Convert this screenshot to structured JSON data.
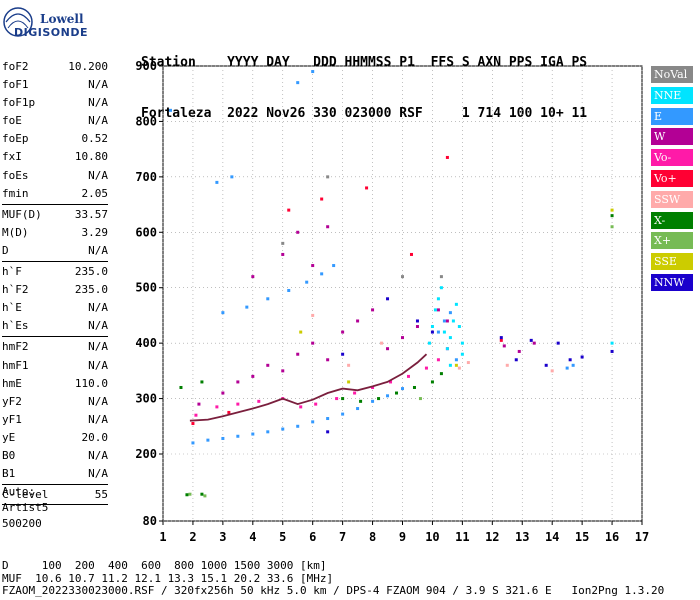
{
  "logo": {
    "line1": "Lowell",
    "line2": "DIGISONDE"
  },
  "header": {
    "line1": "Station    YYYY DAY   DDD HHMMSS P1  FFS S AXN PPS IGA PS",
    "line2": "Fortaleza  2022 Nov26 330 023000 RSF     1 714 100 10+ 11"
  },
  "params": [
    {
      "group": [
        {
          "k": "foF2",
          "v": "10.200"
        },
        {
          "k": "foF1",
          "v": "N/A"
        },
        {
          "k": "foF1p",
          "v": "N/A"
        },
        {
          "k": "foE",
          "v": "N/A"
        },
        {
          "k": "foEp",
          "v": "0.52"
        },
        {
          "k": "fxI",
          "v": "10.80"
        },
        {
          "k": "foEs",
          "v": "N/A"
        },
        {
          "k": "fmin",
          "v": "2.05"
        }
      ]
    },
    {
      "group": [
        {
          "k": "MUF(D)",
          "v": "33.57"
        },
        {
          "k": "M(D)",
          "v": "3.29"
        },
        {
          "k": "D",
          "v": "N/A"
        }
      ]
    },
    {
      "group": [
        {
          "k": "h`F",
          "v": "235.0"
        },
        {
          "k": "h`F2",
          "v": "235.0"
        },
        {
          "k": "h`E",
          "v": "N/A"
        },
        {
          "k": "h`Es",
          "v": "N/A"
        }
      ]
    },
    {
      "group": [
        {
          "k": "hmF2",
          "v": "N/A"
        },
        {
          "k": "hmF1",
          "v": "N/A"
        },
        {
          "k": "hmE",
          "v": "110.0"
        },
        {
          "k": "yF2",
          "v": "N/A"
        },
        {
          "k": "yF1",
          "v": "N/A"
        },
        {
          "k": "yE",
          "v": "20.0"
        },
        {
          "k": "B0",
          "v": "N/A"
        },
        {
          "k": "B1",
          "v": "N/A"
        }
      ]
    },
    {
      "group": [
        {
          "k": "C-level",
          "v": "55"
        }
      ]
    }
  ],
  "auto": {
    "line1": "Auto:",
    "line2": "Artist5",
    "line3": "500200"
  },
  "legend": [
    {
      "label": "NoVal",
      "color": "#888888"
    },
    {
      "label": "NNE",
      "color": "#00e4ff"
    },
    {
      "label": "E",
      "color": "#3399ff"
    },
    {
      "label": "W",
      "color": "#b30095"
    },
    {
      "label": "Vo-",
      "color": "#ff1aa8"
    },
    {
      "label": "Vo+",
      "color": "#ff0033"
    },
    {
      "label": "SSW",
      "color": "#ffaaaa"
    },
    {
      "label": "X-",
      "color": "#007f00"
    },
    {
      "label": "X+",
      "color": "#77bb55"
    },
    {
      "label": "SSE",
      "color": "#cccc00"
    },
    {
      "label": "NNW",
      "color": "#1a00cc"
    }
  ],
  "footer": {
    "line1": "D     100  200  400  600  800 1000 1500 3000 [km]",
    "line2": "MUF  10.6 10.7 11.2 12.1 13.3 15.1 20.2 33.6 [MHz]",
    "line3": "FZAOM_2022330023000.RSF / 320fx256h 50 kHz 5.0 km / DPS-4 FZAOM 904 / 3.9 S 321.6 E   Ion2Png 1.3.20"
  },
  "chart_data": {
    "type": "scatter",
    "xlim": [
      1,
      17
    ],
    "ylim": [
      80,
      900
    ],
    "xticks": [
      1,
      2,
      3,
      4,
      5,
      6,
      7,
      8,
      9,
      10,
      11,
      12,
      13,
      14,
      15,
      16,
      17
    ],
    "yticks": [
      80,
      200,
      300,
      400,
      500,
      600,
      700,
      800,
      900
    ],
    "grid": "dotted",
    "legend_position": "right",
    "series": [
      {
        "name": "E",
        "color": "#3399ff",
        "points": [
          [
            2.0,
            220
          ],
          [
            3.0,
            228
          ],
          [
            4.0,
            236
          ],
          [
            5.0,
            245
          ],
          [
            6.0,
            258
          ],
          [
            7.0,
            272
          ],
          [
            7.5,
            282
          ],
          [
            8.0,
            295
          ],
          [
            2.5,
            225
          ],
          [
            3.5,
            232
          ],
          [
            4.5,
            240
          ],
          [
            5.5,
            250
          ],
          [
            6.5,
            264
          ],
          [
            8.5,
            305
          ],
          [
            9.0,
            318
          ],
          [
            3.0,
            455
          ],
          [
            3.8,
            465
          ],
          [
            4.5,
            480
          ],
          [
            5.2,
            495
          ],
          [
            5.8,
            510
          ],
          [
            6.3,
            525
          ],
          [
            6.7,
            540
          ],
          [
            5.5,
            870
          ],
          [
            6.0,
            890
          ],
          [
            2.8,
            690
          ],
          [
            3.3,
            700
          ],
          [
            1.25,
            820
          ],
          [
            10.2,
            420
          ],
          [
            10.4,
            440
          ],
          [
            10.6,
            455
          ],
          [
            10.8,
            370
          ],
          [
            14.5,
            355
          ],
          [
            14.7,
            360
          ]
        ]
      },
      {
        "name": "W",
        "color": "#b30095",
        "points": [
          [
            2.2,
            290
          ],
          [
            3.0,
            310
          ],
          [
            3.5,
            330
          ],
          [
            4.0,
            340
          ],
          [
            4.5,
            360
          ],
          [
            5.0,
            350
          ],
          [
            5.5,
            380
          ],
          [
            6.0,
            400
          ],
          [
            6.5,
            370
          ],
          [
            7.0,
            420
          ],
          [
            7.5,
            440
          ],
          [
            8.0,
            460
          ],
          [
            8.5,
            390
          ],
          [
            9.0,
            410
          ],
          [
            9.5,
            430
          ],
          [
            5.0,
            560
          ],
          [
            5.5,
            600
          ],
          [
            6.0,
            540
          ],
          [
            6.5,
            610
          ],
          [
            4.0,
            520
          ],
          [
            10.2,
            460
          ],
          [
            10.5,
            440
          ],
          [
            12.4,
            395
          ],
          [
            12.9,
            385
          ],
          [
            13.4,
            400
          ]
        ]
      },
      {
        "name": "Vo-",
        "color": "#ff1aa8",
        "points": [
          [
            2.1,
            270
          ],
          [
            2.8,
            285
          ],
          [
            3.5,
            290
          ],
          [
            4.2,
            295
          ],
          [
            5.0,
            300
          ],
          [
            5.6,
            285
          ],
          [
            6.1,
            290
          ],
          [
            6.8,
            300
          ],
          [
            7.4,
            310
          ],
          [
            8.0,
            320
          ],
          [
            8.6,
            330
          ],
          [
            9.2,
            340
          ],
          [
            9.8,
            355
          ],
          [
            10.2,
            370
          ],
          [
            10.5,
            390
          ]
        ]
      },
      {
        "name": "Vo+",
        "color": "#ff0033",
        "points": [
          [
            2.0,
            255
          ],
          [
            3.2,
            275
          ],
          [
            5.2,
            640
          ],
          [
            6.3,
            660
          ],
          [
            7.8,
            680
          ],
          [
            9.3,
            560
          ],
          [
            10.5,
            735
          ],
          [
            12.3,
            405
          ]
        ]
      },
      {
        "name": "X-",
        "color": "#007f00",
        "points": [
          [
            1.6,
            320
          ],
          [
            2.3,
            330
          ],
          [
            7.0,
            300
          ],
          [
            7.6,
            295
          ],
          [
            8.2,
            300
          ],
          [
            8.8,
            310
          ],
          [
            9.4,
            320
          ],
          [
            10.0,
            330
          ],
          [
            10.3,
            345
          ],
          [
            1.8,
            127
          ],
          [
            2.3,
            128
          ],
          [
            16.0,
            630
          ]
        ]
      },
      {
        "name": "X+",
        "color": "#77bb55",
        "points": [
          [
            1.9,
            128
          ],
          [
            2.4,
            125
          ],
          [
            9.6,
            300
          ],
          [
            16.0,
            610
          ]
        ]
      },
      {
        "name": "SSE",
        "color": "#cccc00",
        "points": [
          [
            5.6,
            420
          ],
          [
            7.2,
            330
          ],
          [
            10.8,
            360
          ],
          [
            16.0,
            640
          ]
        ]
      },
      {
        "name": "NNE",
        "color": "#00e4ff",
        "points": [
          [
            9.9,
            400
          ],
          [
            10.0,
            430
          ],
          [
            10.1,
            460
          ],
          [
            10.2,
            480
          ],
          [
            10.3,
            500
          ],
          [
            10.4,
            420
          ],
          [
            10.5,
            390
          ],
          [
            10.6,
            410
          ],
          [
            10.7,
            440
          ],
          [
            10.8,
            470
          ],
          [
            10.9,
            430
          ],
          [
            11.0,
            400
          ],
          [
            10.6,
            360
          ],
          [
            11.0,
            380
          ],
          [
            16.0,
            400
          ]
        ]
      },
      {
        "name": "SSW",
        "color": "#ffaaaa",
        "points": [
          [
            6.0,
            450
          ],
          [
            7.2,
            360
          ],
          [
            8.3,
            400
          ],
          [
            10.9,
            355
          ],
          [
            11.2,
            365
          ],
          [
            12.5,
            360
          ],
          [
            14.0,
            350
          ]
        ]
      },
      {
        "name": "NNW",
        "color": "#1a00cc",
        "points": [
          [
            6.5,
            240
          ],
          [
            7.0,
            380
          ],
          [
            8.5,
            480
          ],
          [
            9.5,
            440
          ],
          [
            10.0,
            420
          ],
          [
            12.3,
            410
          ],
          [
            12.8,
            370
          ],
          [
            13.3,
            405
          ],
          [
            13.8,
            360
          ],
          [
            14.2,
            400
          ],
          [
            14.6,
            370
          ],
          [
            15.0,
            375
          ],
          [
            16.0,
            385
          ]
        ]
      },
      {
        "name": "NoVal",
        "color": "#888888",
        "points": [
          [
            5.0,
            580
          ],
          [
            6.5,
            700
          ],
          [
            9.0,
            520
          ],
          [
            10.3,
            520
          ]
        ]
      }
    ],
    "trace": {
      "color": "#7a1f3d",
      "points": [
        [
          1.9,
          260
        ],
        [
          2.5,
          262
        ],
        [
          3.0,
          268
        ],
        [
          3.5,
          275
        ],
        [
          4.0,
          282
        ],
        [
          4.5,
          290
        ],
        [
          5.0,
          300
        ],
        [
          5.5,
          290
        ],
        [
          6.0,
          298
        ],
        [
          6.5,
          310
        ],
        [
          7.0,
          318
        ],
        [
          7.5,
          315
        ],
        [
          8.0,
          322
        ],
        [
          8.5,
          330
        ],
        [
          9.0,
          345
        ],
        [
          9.5,
          365
        ],
        [
          9.8,
          380
        ]
      ]
    }
  }
}
